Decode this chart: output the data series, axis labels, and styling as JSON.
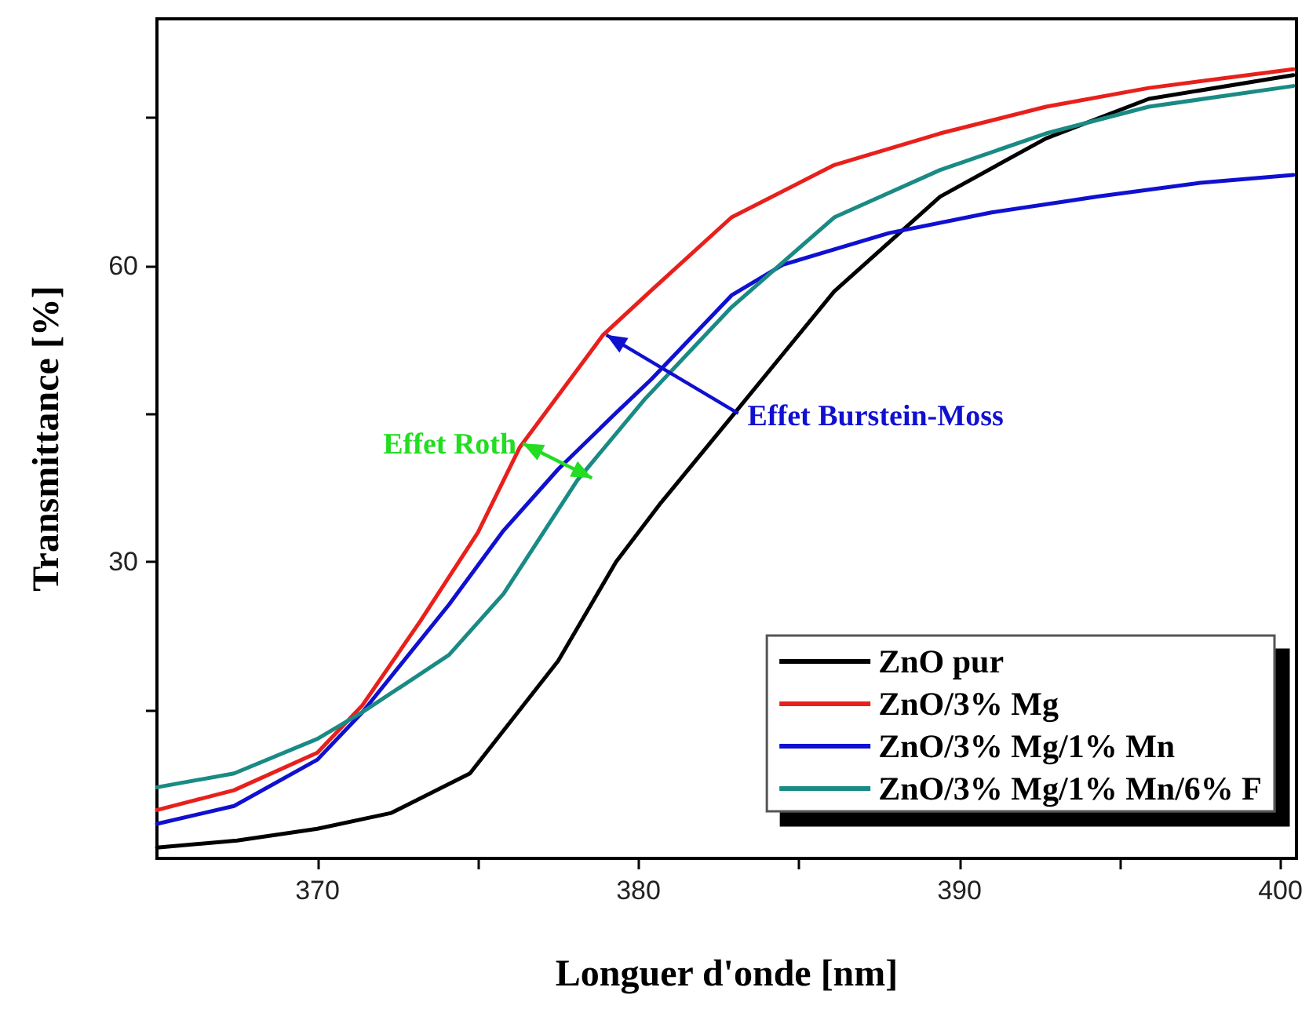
{
  "chart_data": {
    "type": "line",
    "xlabel": "Longuer d'onde [nm]",
    "ylabel": "Transmittance [%]",
    "xlim": [
      365,
      400.5
    ],
    "xticks": [
      370,
      {
        "value": 375,
        "label": null
      },
      380,
      {
        "value": 385,
        "label": null
      },
      390,
      {
        "value": 395,
        "label": null
      },
      400
    ],
    "ylim": [
      0,
      85
    ],
    "yticks": [
      {
        "value": 15,
        "label": null
      },
      30,
      {
        "value": 45,
        "label": null
      },
      60,
      {
        "value": 75,
        "label": null
      }
    ],
    "grid": false,
    "legend": "bottom right",
    "marker": "none",
    "line_style": "solid",
    "annotations": [
      {
        "text": "Effet Roth",
        "x": 376.4,
        "y": 42
      },
      {
        "text": "Effet Burstein-Moss",
        "x": 379,
        "y": 53
      }
    ],
    "series": [
      {
        "name": "ZnO pur",
        "color": "#000000",
        "x": [
          365,
          367.5,
          370,
          372.3,
          374.75,
          377.5,
          379.3,
          380.7,
          382.9,
          386.1,
          389.4,
          392.7,
          395.9,
          400.4
        ],
        "values": [
          1.1,
          1.8,
          3.0,
          4.6,
          8.6,
          20,
          30,
          36,
          44.7,
          57.4,
          67,
          72.9,
          76.9,
          79.3
        ]
      },
      {
        "name": "ZnO/3% Mg",
        "color": "#e8201c",
        "x": [
          365,
          367.4,
          370,
          371.4,
          373.2,
          375,
          376.3,
          378.9,
          380.4,
          382.9,
          386.1,
          389.4,
          392.7,
          395.9,
          400.4
        ],
        "values": [
          4.9,
          6.9,
          10.7,
          15.5,
          24,
          33,
          41.6,
          53,
          57.5,
          64.9,
          70.2,
          73.4,
          76.1,
          78,
          79.9
        ]
      },
      {
        "name": "ZnO/3% Mg/1% Mn",
        "color": "#1010d0",
        "x": [
          365,
          367.4,
          370,
          371.4,
          374.1,
          375.8,
          377.5,
          379.3,
          380.4,
          382.9,
          384.5,
          387.8,
          391,
          394.3,
          397.5,
          400.4
        ],
        "values": [
          3.5,
          5.3,
          10,
          14.8,
          25.7,
          33.2,
          39.4,
          45.1,
          48.5,
          57,
          60.1,
          63.3,
          65.4,
          67,
          68.4,
          69.2
        ]
      },
      {
        "name": "ZnO/3% Mg/1% Mn/6% F",
        "color": "#1a8a84",
        "x": [
          365,
          367.4,
          370,
          371.4,
          374.1,
          375.8,
          378.1,
          380.2,
          382.9,
          386.1,
          389.4,
          392.7,
          395.9,
          400.4
        ],
        "values": [
          7.2,
          8.6,
          12.1,
          14.8,
          20.6,
          26.8,
          38.3,
          46.5,
          55.8,
          64.9,
          69.7,
          73.4,
          76.1,
          78.2
        ]
      }
    ]
  }
}
